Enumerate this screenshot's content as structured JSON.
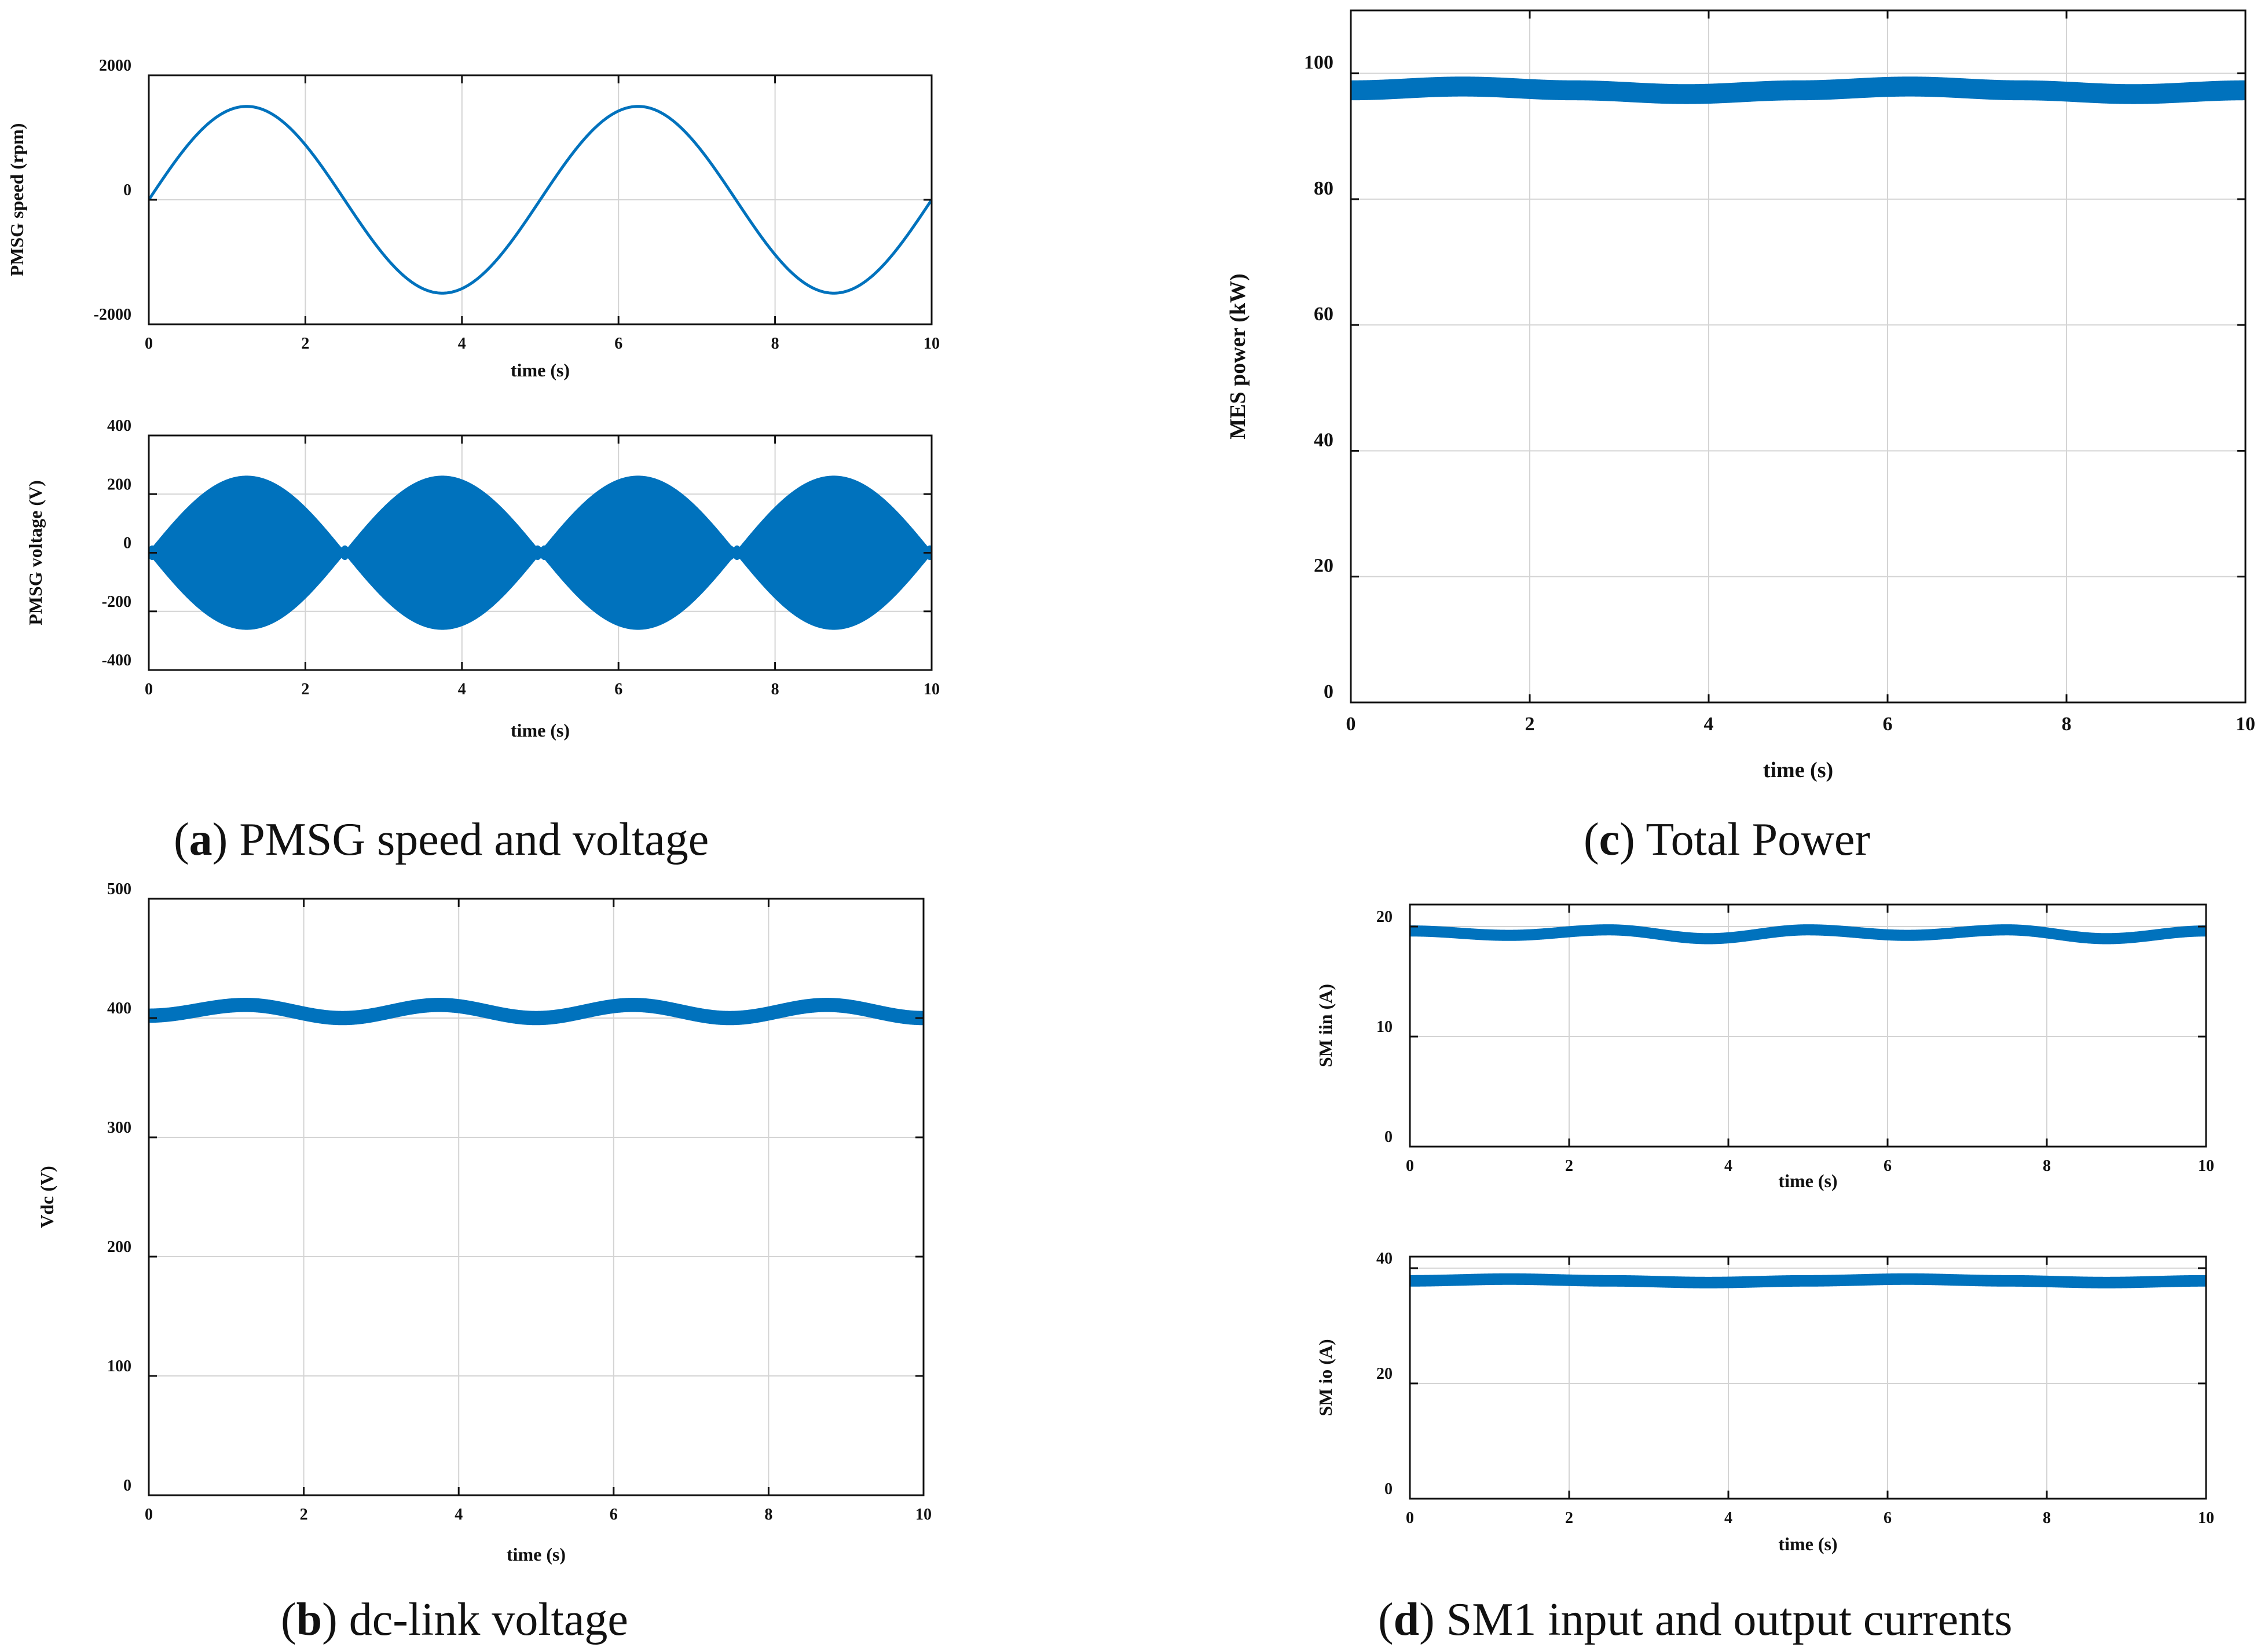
{
  "captions": {
    "a": {
      "letter": "a",
      "text": "PMSG speed and voltage"
    },
    "b": {
      "letter": "b",
      "text": "dc-link voltage"
    },
    "c": {
      "letter": "c",
      "text": "Total Power"
    },
    "d": {
      "letter": "d",
      "text": "SM1 input and output currents"
    }
  },
  "colors": {
    "series": "#0072BD",
    "grid": "#d4d4d4",
    "axis": "#111111",
    "text": "#111111"
  },
  "chart_data": [
    {
      "id": "a1",
      "panel": "a",
      "type": "line",
      "signal": "sine",
      "title": "",
      "xlabel": "time (s)",
      "ylabel": "PMSG speed (rpm)",
      "xlim": [
        0,
        10
      ],
      "ylim": [
        -2000,
        2000
      ],
      "xticks": [
        "0",
        "2",
        "4",
        "6",
        "8",
        "10"
      ],
      "yticks": [
        "-2000",
        "0",
        "2000"
      ],
      "series": [
        {
          "name": "PMSG speed",
          "amplitude": 1500,
          "period_s": 5,
          "start_value": 0
        }
      ]
    },
    {
      "id": "a2",
      "panel": "a",
      "type": "area",
      "signal": "ac_envelope",
      "title": "",
      "xlabel": "time (s)",
      "ylabel": "PMSG voltage (V)",
      "xlim": [
        0,
        10
      ],
      "ylim": [
        -400,
        400
      ],
      "xticks": [
        "0",
        "2",
        "4",
        "6",
        "8",
        "10"
      ],
      "yticks": [
        "-400",
        "-200",
        "0",
        "200",
        "400"
      ],
      "series": [
        {
          "name": "PMSG voltage",
          "peak": 260,
          "envelope_period_s": 2.5,
          "peak_times_s": [
            1.25,
            3.75,
            6.25,
            8.75
          ]
        }
      ]
    },
    {
      "id": "b1",
      "panel": "b",
      "type": "line",
      "signal": "band",
      "title": "",
      "xlabel": "time (s)",
      "ylabel": "Vdc (V)",
      "xlim": [
        0,
        10
      ],
      "ylim": [
        0,
        500
      ],
      "xticks": [
        "0",
        "2",
        "4",
        "6",
        "8",
        "10"
      ],
      "yticks": [
        "0",
        "100",
        "200",
        "300",
        "400",
        "500"
      ],
      "series": [
        {
          "name": "Vdc",
          "x": [
            0,
            1.25,
            2.5,
            3.75,
            5,
            6.25,
            7.5,
            8.75,
            10
          ],
          "y": [
            402,
            411,
            400,
            411,
            400,
            411,
            400,
            411,
            400
          ],
          "band_halfwidth": 5
        }
      ]
    },
    {
      "id": "c1",
      "panel": "c",
      "type": "line",
      "signal": "band",
      "title": "",
      "xlabel": "time (s)",
      "ylabel": "MES power (kW)",
      "xlim": [
        0,
        10
      ],
      "ylim": [
        0,
        110
      ],
      "xticks": [
        "0",
        "2",
        "4",
        "6",
        "8",
        "10"
      ],
      "yticks": [
        "0",
        "20",
        "40",
        "60",
        "80",
        "100"
      ],
      "series": [
        {
          "name": "MES power",
          "x": [
            0,
            1.25,
            2.5,
            3.75,
            5,
            6.25,
            7.5,
            8.75,
            10
          ],
          "y": [
            97.3,
            97.9,
            97.3,
            96.7,
            97.3,
            97.9,
            97.3,
            96.7,
            97.3
          ],
          "band_halfwidth": 1.4
        }
      ]
    },
    {
      "id": "d1",
      "panel": "d",
      "type": "line",
      "signal": "band",
      "title": "",
      "xlabel": "time (s)",
      "ylabel": "SM iin (A)",
      "xlim": [
        0,
        10
      ],
      "ylim": [
        0,
        22
      ],
      "xticks": [
        "0",
        "2",
        "4",
        "6",
        "8",
        "10"
      ],
      "yticks": [
        "0",
        "10",
        "20"
      ],
      "series": [
        {
          "name": "SM iin",
          "x": [
            0,
            1.25,
            2.5,
            3.75,
            5,
            6.25,
            7.5,
            8.75,
            10
          ],
          "y": [
            19.6,
            19.2,
            19.7,
            18.9,
            19.7,
            19.2,
            19.7,
            18.9,
            19.6
          ],
          "band_halfwidth": 0.4
        }
      ]
    },
    {
      "id": "d2",
      "panel": "d",
      "type": "line",
      "signal": "band",
      "title": "",
      "xlabel": "time (s)",
      "ylabel": "SM io (A)",
      "xlim": [
        0,
        10
      ],
      "ylim": [
        0,
        42
      ],
      "xticks": [
        "0",
        "2",
        "4",
        "6",
        "8",
        "10"
      ],
      "yticks": [
        "0",
        "20",
        "40"
      ],
      "series": [
        {
          "name": "SM io",
          "x": [
            0,
            1.25,
            2.5,
            3.75,
            5,
            6.25,
            7.5,
            8.75,
            10
          ],
          "y": [
            37.8,
            38.1,
            37.8,
            37.5,
            37.8,
            38.1,
            37.8,
            37.5,
            37.8
          ],
          "band_halfwidth": 0.8
        }
      ]
    }
  ]
}
